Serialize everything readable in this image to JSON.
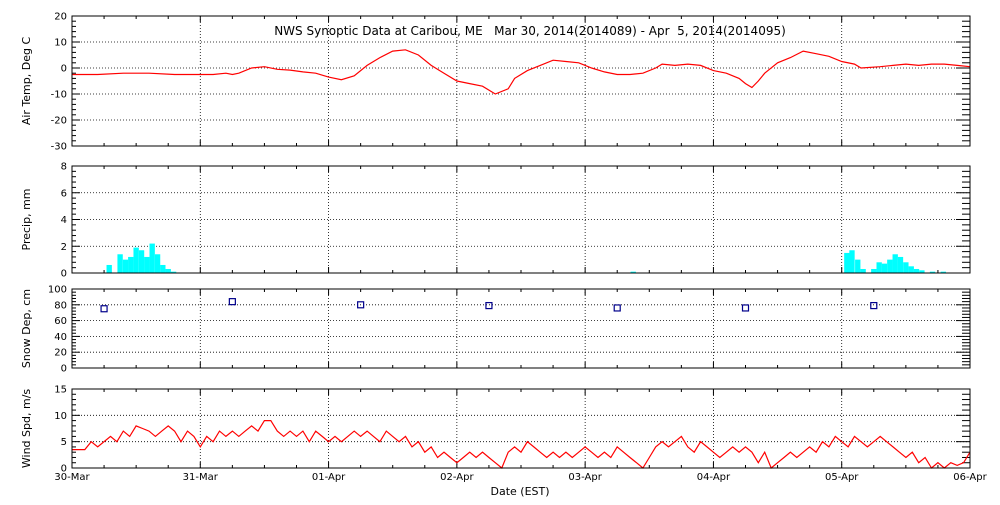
{
  "title": "NWS Synoptic Data at Caribou, ME   Mar 30, 2014(2014089) - Apr  5, 2014(2014095)",
  "xlabel": "Date (EST)",
  "x_ticks": [
    "30-Mar",
    "31-Mar",
    "01-Apr",
    "02-Apr",
    "03-Apr",
    "04-Apr",
    "05-Apr",
    "06-Apr"
  ],
  "colors": {
    "line": "#ff0000",
    "bar": "#00ffff",
    "marker": "#00008b",
    "frame": "#000000"
  },
  "chart_data": [
    {
      "id": "air-temp",
      "type": "line",
      "ylabel": "Air Temp, Deg C",
      "ylim": [
        -30,
        20
      ],
      "yticks": [
        20,
        10,
        0,
        -10,
        -20,
        -30
      ],
      "x_unit": "days since 30-Mar 00:00 EST",
      "series": [
        {
          "points": [
            [
              0,
              -2.5
            ],
            [
              0.2,
              -2.5
            ],
            [
              0.4,
              -2
            ],
            [
              0.6,
              -2
            ],
            [
              0.8,
              -2.5
            ],
            [
              1.0,
              -2.5
            ],
            [
              1.1,
              -2.5
            ],
            [
              1.2,
              -2
            ],
            [
              1.25,
              -2.5
            ],
            [
              1.3,
              -2
            ],
            [
              1.4,
              0
            ],
            [
              1.5,
              0.5
            ],
            [
              1.6,
              -0.5
            ],
            [
              1.7,
              -0.8
            ],
            [
              1.8,
              -1.5
            ],
            [
              1.9,
              -2
            ],
            [
              2.0,
              -3.5
            ],
            [
              2.1,
              -4.5
            ],
            [
              2.2,
              -3
            ],
            [
              2.3,
              1
            ],
            [
              2.4,
              4
            ],
            [
              2.5,
              6.5
            ],
            [
              2.6,
              7
            ],
            [
              2.7,
              5
            ],
            [
              2.8,
              1
            ],
            [
              2.9,
              -2
            ],
            [
              3.0,
              -5
            ],
            [
              3.1,
              -6
            ],
            [
              3.2,
              -7
            ],
            [
              3.3,
              -10
            ],
            [
              3.4,
              -8
            ],
            [
              3.45,
              -4
            ],
            [
              3.55,
              -1
            ],
            [
              3.65,
              1
            ],
            [
              3.75,
              3
            ],
            [
              3.85,
              2.5
            ],
            [
              3.95,
              2
            ],
            [
              4.05,
              0
            ],
            [
              4.15,
              -1.5
            ],
            [
              4.25,
              -2.5
            ],
            [
              4.35,
              -2.5
            ],
            [
              4.45,
              -2
            ],
            [
              4.55,
              0
            ],
            [
              4.6,
              1.5
            ],
            [
              4.7,
              1
            ],
            [
              4.8,
              1.5
            ],
            [
              4.9,
              1
            ],
            [
              5.0,
              -1
            ],
            [
              5.1,
              -2
            ],
            [
              5.2,
              -4
            ],
            [
              5.25,
              -6
            ],
            [
              5.3,
              -7.5
            ],
            [
              5.35,
              -5
            ],
            [
              5.4,
              -2
            ],
            [
              5.5,
              2
            ],
            [
              5.6,
              4
            ],
            [
              5.7,
              6.5
            ],
            [
              5.8,
              5.5
            ],
            [
              5.9,
              4.5
            ],
            [
              6.0,
              2.5
            ],
            [
              6.1,
              1.5
            ],
            [
              6.15,
              0
            ],
            [
              6.3,
              0.5
            ],
            [
              6.4,
              1
            ],
            [
              6.5,
              1.5
            ],
            [
              6.6,
              1
            ],
            [
              6.7,
              1.5
            ],
            [
              6.8,
              1.5
            ],
            [
              6.9,
              1
            ],
            [
              7.0,
              0.5
            ]
          ]
        }
      ]
    },
    {
      "id": "precip",
      "type": "bar",
      "ylabel": "Precip, mm",
      "ylim": [
        0,
        8
      ],
      "yticks": [
        8,
        6,
        4,
        2,
        0
      ],
      "x_unit": "days since 30-Mar 00:00 EST",
      "bar_width_days": 0.0417,
      "bars": [
        [
          0.29,
          0.6
        ],
        [
          0.375,
          1.4
        ],
        [
          0.417,
          1.0
        ],
        [
          0.458,
          1.2
        ],
        [
          0.5,
          1.9
        ],
        [
          0.542,
          1.7
        ],
        [
          0.583,
          1.2
        ],
        [
          0.625,
          2.2
        ],
        [
          0.667,
          1.4
        ],
        [
          0.708,
          0.6
        ],
        [
          0.75,
          0.3
        ],
        [
          0.792,
          0.1
        ],
        [
          4.375,
          0.1
        ],
        [
          6.04,
          1.5
        ],
        [
          6.08,
          1.7
        ],
        [
          6.125,
          1.0
        ],
        [
          6.167,
          0.3
        ],
        [
          6.25,
          0.3
        ],
        [
          6.292,
          0.8
        ],
        [
          6.333,
          0.7
        ],
        [
          6.375,
          1.0
        ],
        [
          6.417,
          1.4
        ],
        [
          6.458,
          1.2
        ],
        [
          6.5,
          0.8
        ],
        [
          6.542,
          0.5
        ],
        [
          6.583,
          0.3
        ],
        [
          6.625,
          0.2
        ],
        [
          6.708,
          0.1
        ],
        [
          6.792,
          0.1
        ]
      ]
    },
    {
      "id": "snow-depth",
      "type": "scatter",
      "ylabel": "Snow Dep, cm",
      "ylim": [
        0,
        100
      ],
      "yticks": [
        100,
        80,
        60,
        40,
        20,
        0
      ],
      "x_unit": "days since 30-Mar 00:00 EST",
      "series": [
        {
          "points": [
            [
              0.25,
              75
            ],
            [
              1.25,
              84
            ],
            [
              2.25,
              80
            ],
            [
              3.25,
              79
            ],
            [
              4.25,
              76
            ],
            [
              5.25,
              76
            ],
            [
              6.25,
              79
            ]
          ]
        }
      ]
    },
    {
      "id": "wind-speed",
      "type": "line",
      "ylabel": "Wind Spd, m/s",
      "ylim": [
        0,
        15
      ],
      "yticks": [
        15,
        10,
        5,
        0
      ],
      "x_unit": "days since 30-Mar 00:00 EST",
      "series": [
        {
          "points": [
            [
              0,
              3.5
            ],
            [
              0.1,
              3.5
            ],
            [
              0.15,
              5
            ],
            [
              0.2,
              4
            ],
            [
              0.3,
              6
            ],
            [
              0.35,
              5
            ],
            [
              0.4,
              7
            ],
            [
              0.45,
              6
            ],
            [
              0.5,
              8
            ],
            [
              0.55,
              7.5
            ],
            [
              0.6,
              7
            ],
            [
              0.65,
              6
            ],
            [
              0.7,
              7
            ],
            [
              0.75,
              8
            ],
            [
              0.8,
              7
            ],
            [
              0.85,
              5
            ],
            [
              0.9,
              7
            ],
            [
              0.95,
              6
            ],
            [
              1.0,
              4
            ],
            [
              1.05,
              6
            ],
            [
              1.1,
              5
            ],
            [
              1.15,
              7
            ],
            [
              1.2,
              6
            ],
            [
              1.25,
              7
            ],
            [
              1.3,
              6
            ],
            [
              1.35,
              7
            ],
            [
              1.4,
              8
            ],
            [
              1.45,
              7
            ],
            [
              1.5,
              9
            ],
            [
              1.55,
              9
            ],
            [
              1.6,
              7
            ],
            [
              1.65,
              6
            ],
            [
              1.7,
              7
            ],
            [
              1.75,
              6
            ],
            [
              1.8,
              7
            ],
            [
              1.85,
              5
            ],
            [
              1.9,
              7
            ],
            [
              1.95,
              6
            ],
            [
              2.0,
              5
            ],
            [
              2.05,
              6
            ],
            [
              2.1,
              5
            ],
            [
              2.15,
              6
            ],
            [
              2.2,
              7
            ],
            [
              2.25,
              6
            ],
            [
              2.3,
              7
            ],
            [
              2.35,
              6
            ],
            [
              2.4,
              5
            ],
            [
              2.45,
              7
            ],
            [
              2.5,
              6
            ],
            [
              2.55,
              5
            ],
            [
              2.6,
              6
            ],
            [
              2.65,
              4
            ],
            [
              2.7,
              5
            ],
            [
              2.75,
              3
            ],
            [
              2.8,
              4
            ],
            [
              2.85,
              2
            ],
            [
              2.9,
              3
            ],
            [
              2.95,
              2
            ],
            [
              3.0,
              1
            ],
            [
              3.05,
              2
            ],
            [
              3.1,
              3
            ],
            [
              3.15,
              2
            ],
            [
              3.2,
              3
            ],
            [
              3.25,
              2
            ],
            [
              3.3,
              1
            ],
            [
              3.35,
              0
            ],
            [
              3.4,
              3
            ],
            [
              3.45,
              4
            ],
            [
              3.5,
              3
            ],
            [
              3.55,
              5
            ],
            [
              3.6,
              4
            ],
            [
              3.65,
              3
            ],
            [
              3.7,
              2
            ],
            [
              3.75,
              3
            ],
            [
              3.8,
              2
            ],
            [
              3.85,
              3
            ],
            [
              3.9,
              2
            ],
            [
              3.95,
              3
            ],
            [
              4.0,
              4
            ],
            [
              4.05,
              3
            ],
            [
              4.1,
              2
            ],
            [
              4.15,
              3
            ],
            [
              4.2,
              2
            ],
            [
              4.25,
              4
            ],
            [
              4.3,
              3
            ],
            [
              4.35,
              2
            ],
            [
              4.4,
              1
            ],
            [
              4.45,
              0
            ],
            [
              4.5,
              2
            ],
            [
              4.55,
              4
            ],
            [
              4.6,
              5
            ],
            [
              4.65,
              4
            ],
            [
              4.7,
              5
            ],
            [
              4.75,
              6
            ],
            [
              4.8,
              4
            ],
            [
              4.85,
              3
            ],
            [
              4.9,
              5
            ],
            [
              4.95,
              4
            ],
            [
              5.0,
              3
            ],
            [
              5.05,
              2
            ],
            [
              5.1,
              3
            ],
            [
              5.15,
              4
            ],
            [
              5.2,
              3
            ],
            [
              5.25,
              4
            ],
            [
              5.3,
              3
            ],
            [
              5.35,
              1
            ],
            [
              5.4,
              3
            ],
            [
              5.45,
              0
            ],
            [
              5.5,
              1
            ],
            [
              5.55,
              2
            ],
            [
              5.6,
              3
            ],
            [
              5.65,
              2
            ],
            [
              5.7,
              3
            ],
            [
              5.75,
              4
            ],
            [
              5.8,
              3
            ],
            [
              5.85,
              5
            ],
            [
              5.9,
              4
            ],
            [
              5.95,
              6
            ],
            [
              6.0,
              5
            ],
            [
              6.05,
              4
            ],
            [
              6.1,
              6
            ],
            [
              6.15,
              5
            ],
            [
              6.2,
              4
            ],
            [
              6.25,
              5
            ],
            [
              6.3,
              6
            ],
            [
              6.35,
              5
            ],
            [
              6.4,
              4
            ],
            [
              6.45,
              3
            ],
            [
              6.5,
              2
            ],
            [
              6.55,
              3
            ],
            [
              6.6,
              1
            ],
            [
              6.65,
              2
            ],
            [
              6.7,
              0
            ],
            [
              6.75,
              1
            ],
            [
              6.8,
              0
            ],
            [
              6.85,
              1
            ],
            [
              6.9,
              0.5
            ],
            [
              6.95,
              1
            ],
            [
              7.0,
              3
            ]
          ]
        }
      ]
    }
  ]
}
